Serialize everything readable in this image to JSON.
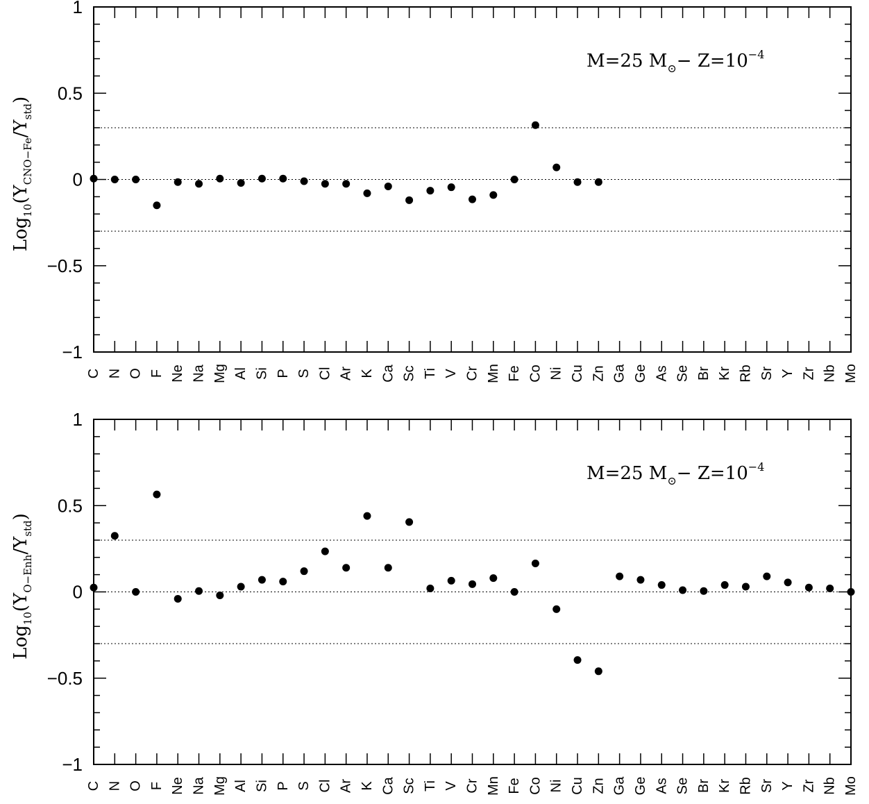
{
  "chart_data": [
    {
      "type": "scatter",
      "ylabel": {
        "prefix": "Log",
        "log_sub": "10",
        "open": "(Y",
        "num_sub": "CNO−Fe",
        "mid": "/Y",
        "den_sub": "std",
        "close": ")"
      },
      "annotation": {
        "mass": "M=25  M",
        "sun": "⊙",
        "sep": "−  Z=10",
        "exp": "−4"
      },
      "ylim": [
        -1,
        1
      ],
      "yticks": [
        {
          "v": 1,
          "label": "1"
        },
        {
          "v": 0.5,
          "label": "0.5"
        },
        {
          "v": 0,
          "label": "0"
        },
        {
          "v": -0.5,
          "label": "−0.5"
        },
        {
          "v": -1,
          "label": "−1"
        }
      ],
      "reference_lines": [
        0.3,
        0,
        -0.3
      ],
      "categories": [
        "C",
        "N",
        "O",
        "F",
        "Ne",
        "Na",
        "Mg",
        "Al",
        "Si",
        "P",
        "S",
        "Cl",
        "Ar",
        "K",
        "Ca",
        "Sc",
        "Ti",
        "V",
        "Cr",
        "Mn",
        "Fe",
        "Co",
        "Ni",
        "Cu",
        "Zn",
        "Ga",
        "Ge",
        "As",
        "Se",
        "Br",
        "Kr",
        "Rb",
        "Sr",
        "Y",
        "Zr",
        "Nb",
        "Mo"
      ],
      "values": [
        0.005,
        0.0,
        0.0,
        -0.15,
        -0.015,
        -0.025,
        0.005,
        -0.02,
        0.005,
        0.005,
        -0.01,
        -0.025,
        -0.025,
        -0.08,
        -0.04,
        -0.12,
        -0.065,
        -0.045,
        -0.115,
        -0.09,
        0.0,
        0.315,
        0.07,
        -0.015,
        -0.015,
        null,
        null,
        null,
        null,
        null,
        null,
        null,
        null,
        null,
        null,
        null,
        null
      ]
    },
    {
      "type": "scatter",
      "ylabel": {
        "prefix": "Log",
        "log_sub": "10",
        "open": "(Y",
        "num_sub": "O−Enh",
        "mid": "/Y",
        "den_sub": "std",
        "close": ")"
      },
      "annotation": {
        "mass": "M=25  M",
        "sun": "⊙",
        "sep": "−  Z=10",
        "exp": "−4"
      },
      "ylim": [
        -1,
        1
      ],
      "yticks": [
        {
          "v": 1,
          "label": "1"
        },
        {
          "v": 0.5,
          "label": "0.5"
        },
        {
          "v": 0,
          "label": "0"
        },
        {
          "v": -0.5,
          "label": "−0.5"
        },
        {
          "v": -1,
          "label": "−1"
        }
      ],
      "reference_lines": [
        0.3,
        0,
        -0.3
      ],
      "categories": [
        "C",
        "N",
        "O",
        "F",
        "Ne",
        "Na",
        "Mg",
        "Al",
        "Si",
        "P",
        "S",
        "Cl",
        "Ar",
        "K",
        "Ca",
        "Sc",
        "Ti",
        "V",
        "Cr",
        "Mn",
        "Fe",
        "Co",
        "Ni",
        "Cu",
        "Zn",
        "Ga",
        "Ge",
        "As",
        "Se",
        "Br",
        "Kr",
        "Rb",
        "Sr",
        "Y",
        "Zr",
        "Nb",
        "Mo"
      ],
      "values": [
        0.025,
        0.325,
        0.0,
        0.565,
        -0.04,
        0.005,
        -0.02,
        0.03,
        0.07,
        0.06,
        0.12,
        0.235,
        0.14,
        0.44,
        0.14,
        0.405,
        0.02,
        0.065,
        0.045,
        0.08,
        0.0,
        0.165,
        -0.1,
        -0.395,
        -0.46,
        0.09,
        0.07,
        0.04,
        0.01,
        0.005,
        0.04,
        0.03,
        0.09,
        0.055,
        0.025,
        0.02,
        0.0
      ]
    }
  ]
}
